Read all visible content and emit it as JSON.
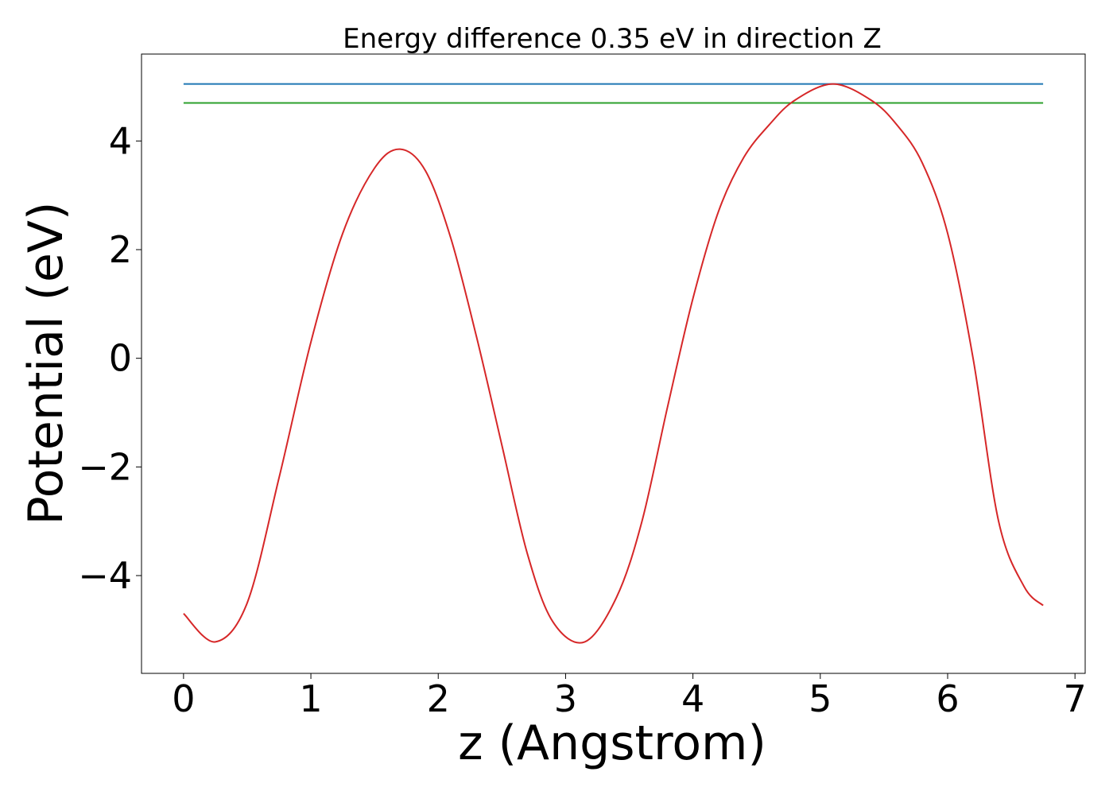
{
  "chart_data": {
    "type": "line",
    "title": "Energy difference 0.35 eV in direction Z",
    "xlabel": "z (Angstrom)",
    "ylabel": "Potential (eV)",
    "xlim": [
      -0.33,
      7.08
    ],
    "ylim": [
      -5.8,
      5.6
    ],
    "xticks": [
      0,
      1,
      2,
      3,
      4,
      5,
      6,
      7
    ],
    "yticks": [
      -4,
      -2,
      0,
      2,
      4
    ],
    "ytick_labels": [
      "−4",
      "−2",
      "0",
      "2",
      "4"
    ],
    "grid": false,
    "legend": "none",
    "series": [
      {
        "color": "#1f77b4",
        "x": [
          0,
          6.75
        ],
        "y": [
          5.05,
          5.05
        ]
      },
      {
        "color": "#2ca02c",
        "x": [
          0,
          6.75
        ],
        "y": [
          4.7,
          4.7
        ]
      },
      {
        "color": "#d62728",
        "x": [
          0,
          0.25,
          0.5,
          0.75,
          1.0,
          1.25,
          1.5,
          1.7,
          1.9,
          2.1,
          2.3,
          2.5,
          2.7,
          2.9,
          3.15,
          3.4,
          3.6,
          3.8,
          4.0,
          4.2,
          4.4,
          4.6,
          4.8,
          5.1,
          5.4,
          5.6,
          5.8,
          6.0,
          6.2,
          6.4,
          6.6,
          6.75
        ],
        "y": [
          -4.7,
          -5.22,
          -4.5,
          -2.2,
          0.3,
          2.3,
          3.5,
          3.85,
          3.45,
          2.2,
          0.4,
          -1.6,
          -3.6,
          -4.85,
          -5.22,
          -4.4,
          -3.0,
          -0.9,
          1.1,
          2.7,
          3.7,
          4.3,
          4.75,
          5.05,
          4.75,
          4.3,
          3.6,
          2.3,
          0.0,
          -3.0,
          -4.2,
          -4.55
        ]
      }
    ]
  }
}
